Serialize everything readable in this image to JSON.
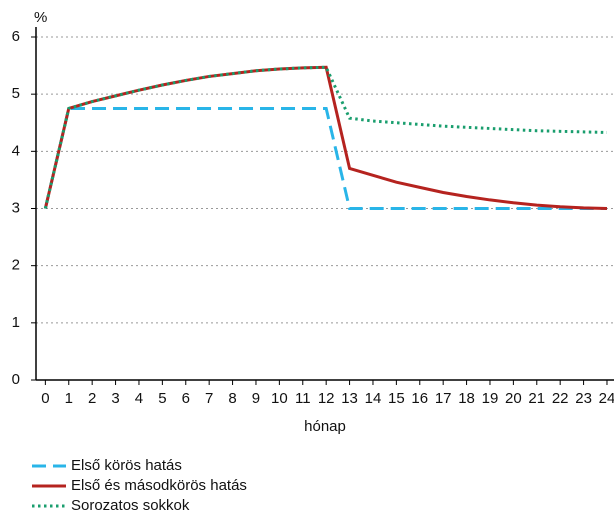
{
  "chart_data": {
    "type": "line",
    "y_unit": "%",
    "xlabel": "hónap",
    "x": [
      0,
      1,
      2,
      3,
      4,
      5,
      6,
      7,
      8,
      9,
      10,
      11,
      12,
      13,
      14,
      15,
      16,
      17,
      18,
      19,
      20,
      21,
      22,
      23,
      24
    ],
    "xlim": [
      -0.4,
      24.3
    ],
    "xticks": [
      0,
      1,
      2,
      3,
      4,
      5,
      6,
      7,
      8,
      9,
      10,
      11,
      12,
      13,
      14,
      15,
      16,
      17,
      18,
      19,
      20,
      21,
      22,
      23,
      24
    ],
    "ylim": [
      0,
      6
    ],
    "yticks": [
      0,
      1,
      2,
      3,
      4,
      5,
      6
    ],
    "grid": true,
    "legend": "bottom-left",
    "series": [
      {
        "name": "Első körös hatás",
        "color": "#29b5e8",
        "style": "dashed",
        "values": [
          3,
          4.75,
          4.75,
          4.75,
          4.75,
          4.75,
          4.75,
          4.75,
          4.75,
          4.75,
          4.75,
          4.75,
          4.75,
          3,
          3,
          3,
          3,
          3,
          3,
          3,
          3,
          3,
          3,
          3,
          3
        ]
      },
      {
        "name": "Első és másodkörös hatás",
        "color": "#b5231f",
        "style": "solid",
        "values": [
          3,
          4.75,
          4.87,
          4.97,
          5.07,
          5.16,
          5.24,
          5.31,
          5.36,
          5.41,
          5.44,
          5.46,
          5.47,
          3.7,
          3.58,
          3.46,
          3.37,
          3.28,
          3.21,
          3.15,
          3.1,
          3.06,
          3.03,
          3.01,
          3
        ]
      },
      {
        "name": "Sorozatos sokkok",
        "color": "#1a9e6e",
        "style": "dotted",
        "values": [
          3,
          4.75,
          4.87,
          4.97,
          5.07,
          5.16,
          5.24,
          5.31,
          5.36,
          5.41,
          5.44,
          5.46,
          5.47,
          4.58,
          4.53,
          4.5,
          4.47,
          4.44,
          4.42,
          4.4,
          4.38,
          4.36,
          4.35,
          4.34,
          4.33
        ]
      }
    ]
  }
}
